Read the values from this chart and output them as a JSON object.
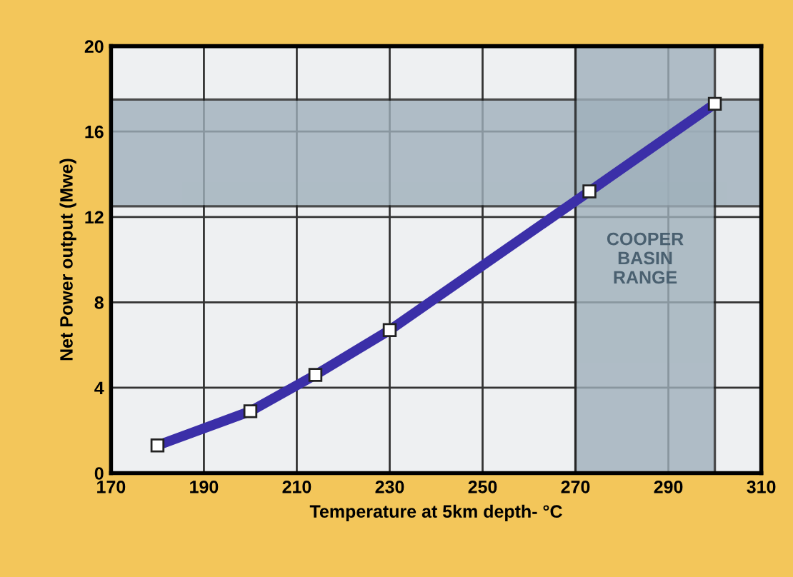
{
  "chart_data": {
    "type": "line",
    "xlabel": "Temperature at 5km depth- °C",
    "ylabel": "Net Power output (Mwe)",
    "x": [
      180,
      200,
      214,
      230,
      273,
      300
    ],
    "series": [
      {
        "color": "#3b2fa8",
        "values": [
          1.3,
          2.9,
          4.6,
          6.7,
          13.2,
          17.3
        ]
      }
    ],
    "marker": "square",
    "line_style": "solid",
    "grid": true,
    "xlim": [
      170,
      310
    ],
    "xticks": [
      170,
      190,
      210,
      230,
      250,
      270,
      290,
      310
    ],
    "ylim": [
      0,
      20
    ],
    "yticks": [
      0,
      4,
      8,
      12,
      16,
      20
    ],
    "bands": [
      {
        "axis": "y",
        "from": 12.5,
        "to": 17.5,
        "color": "#9fb0bb"
      },
      {
        "axis": "x",
        "from": 270,
        "to": 300,
        "label": "COOPER\nBASIN\nRANGE",
        "color": "#9fb0bb"
      }
    ]
  }
}
